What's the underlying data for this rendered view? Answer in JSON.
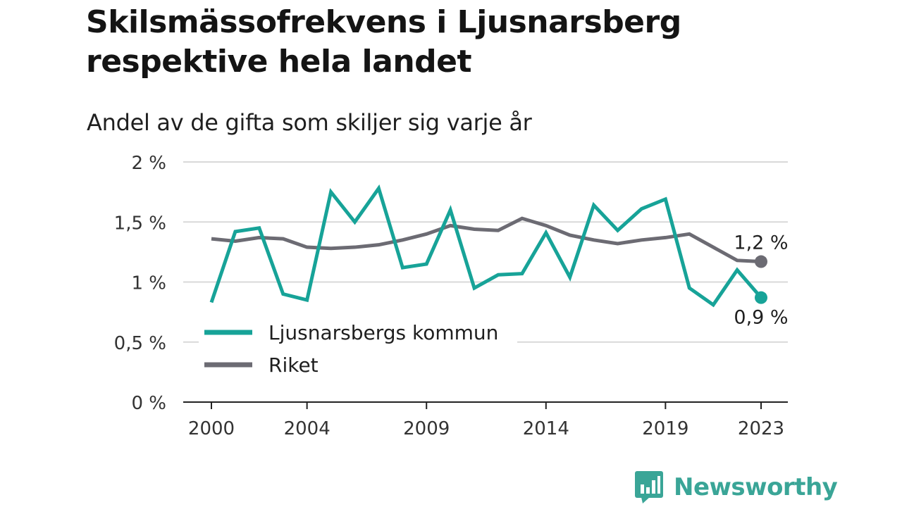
{
  "title": "Skilsmässofrekvens i Ljusnarsberg respektive hela landet",
  "subtitle": "Andel av de gifta som skiljer sig varje år",
  "brand": "Newsworthy",
  "colors": {
    "kommun": "#17a398",
    "riket": "#6c6b73",
    "grid": "#d9d9d9",
    "axis": "#222222",
    "brand": "#3aa597"
  },
  "chart_data": {
    "type": "line",
    "x": [
      2000,
      2001,
      2002,
      2003,
      2004,
      2005,
      2006,
      2007,
      2008,
      2009,
      2010,
      2011,
      2012,
      2013,
      2014,
      2015,
      2016,
      2017,
      2018,
      2019,
      2020,
      2021,
      2022,
      2023
    ],
    "xticks": [
      2000,
      2004,
      2009,
      2014,
      2019,
      2023
    ],
    "xtick_labels": [
      "2000",
      "2004",
      "2009",
      "2014",
      "2019",
      "2023"
    ],
    "yticks": [
      0,
      0.5,
      1,
      1.5,
      2
    ],
    "ytick_labels": [
      "0 %",
      "0,5 %",
      "1 %",
      "1,5 %",
      "2 %"
    ],
    "ylim": [
      0,
      2
    ],
    "grid": true,
    "legend_position": "lower-left",
    "series": [
      {
        "name": "Ljusnarsbergs kommun",
        "values": [
          0.83,
          1.42,
          1.45,
          0.9,
          0.85,
          1.75,
          1.5,
          1.78,
          1.12,
          1.15,
          1.6,
          0.95,
          1.06,
          1.07,
          1.41,
          1.04,
          1.64,
          1.43,
          1.61,
          1.69,
          0.95,
          0.81,
          1.1,
          0.87
        ],
        "end_label": "0,9 %"
      },
      {
        "name": "Riket",
        "values": [
          1.36,
          1.34,
          1.37,
          1.36,
          1.29,
          1.28,
          1.29,
          1.31,
          1.35,
          1.4,
          1.47,
          1.44,
          1.43,
          1.53,
          1.47,
          1.39,
          1.35,
          1.32,
          1.35,
          1.37,
          1.4,
          1.29,
          1.18,
          1.17
        ],
        "end_label": "1,2 %"
      }
    ]
  }
}
